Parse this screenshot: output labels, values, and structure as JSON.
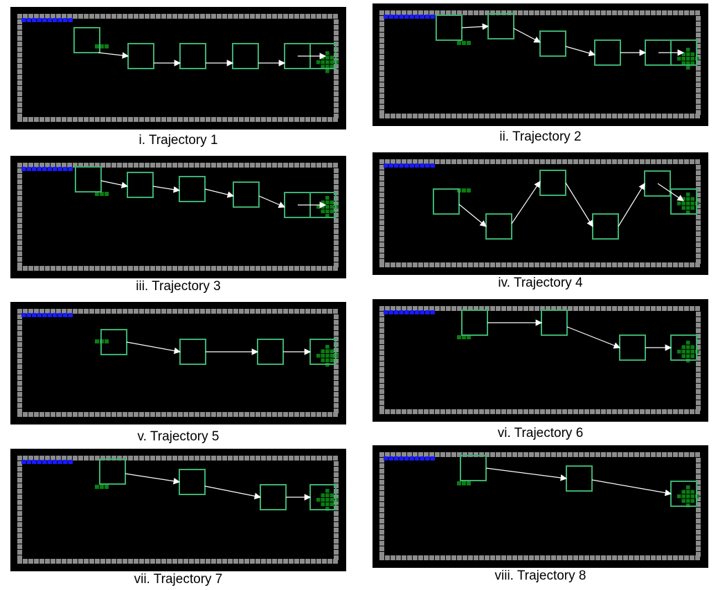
{
  "colors": {
    "background": "#000000",
    "wall": "#8c8c8c",
    "progress_bar": "#1a1aff",
    "box_outline": "#3cb371",
    "agent_green": "#0a7d12",
    "arrow": "#ffffff"
  },
  "panels": [
    {
      "caption": "i. Trajectory 1"
    },
    {
      "caption": "ii. Trajectory 2"
    },
    {
      "caption": "iii. Trajectory 3"
    },
    {
      "caption": "iv. Trajectory 4"
    },
    {
      "caption": "v. Trajectory 5"
    },
    {
      "caption": "vi. Trajectory 6"
    },
    {
      "caption": "vii. Trajectory 7"
    },
    {
      "caption": "viii. Trajectory 8"
    }
  ]
}
